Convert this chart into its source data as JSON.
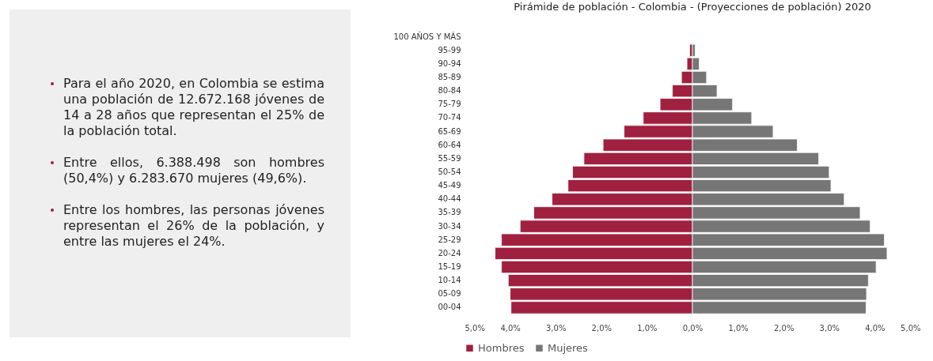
{
  "chart_data": {
    "type": "bar",
    "orientation": "horizontal",
    "stacked": true,
    "title": "Pirámide de población - Colombia - (Proyecciones de población) 2020",
    "categories": [
      "100 AÑOS Y MÁS",
      "95-99",
      "90-94",
      "85-89",
      "80-84",
      "75-79",
      "70-74",
      "65-69",
      "60-64",
      "55-59",
      "50-54",
      "45-49",
      "40-44",
      "35-39",
      "30-34",
      "25-29",
      "20-24",
      "15-19",
      "10-14",
      "05-09",
      "00-04"
    ],
    "series": [
      {
        "name": "Hombres",
        "color": "#a0203f",
        "values": [
          null,
          -0.06,
          -0.12,
          -0.24,
          -0.44,
          -0.71,
          -1.08,
          -1.5,
          -1.96,
          -2.38,
          -2.63,
          -2.73,
          -3.08,
          -3.48,
          -3.78,
          -4.19,
          -4.33,
          -4.19,
          -4.04,
          -4.0,
          -3.98
        ]
      },
      {
        "name": "Mujeres",
        "color": "#767676",
        "values": [
          null,
          0.06,
          0.15,
          0.31,
          0.54,
          0.88,
          1.3,
          1.77,
          2.3,
          2.77,
          3.0,
          3.04,
          3.33,
          3.68,
          3.9,
          4.21,
          4.27,
          4.03,
          3.86,
          3.82,
          3.81
        ]
      }
    ],
    "xlim": [
      -5,
      5
    ],
    "xticks": [
      {
        "value": -5,
        "label": "5,0%"
      },
      {
        "value": -4,
        "label": "4,0%"
      },
      {
        "value": -3,
        "label": "3,0%"
      },
      {
        "value": -2,
        "label": "2,0%"
      },
      {
        "value": -1,
        "label": "1,0%"
      },
      {
        "value": 0,
        "label": "0,0%"
      },
      {
        "value": 1,
        "label": "1,0%"
      },
      {
        "value": 2,
        "label": "2,0%"
      },
      {
        "value": 3,
        "label": "3,0%"
      },
      {
        "value": 4,
        "label": "4,0%"
      },
      {
        "value": 5,
        "label": "5,0%"
      }
    ],
    "legend": "bottom",
    "annotations": [
      "Para el año 2020, en Colombia se estima una población de 12.672.168 jóvenes de 14 a 28 años que representan el 25% de la población total.",
      "Entre ellos, 6.388.498 son hombres (50,4%) y 6.283.670 mujeres (49,6%).",
      "Entre los hombres, las personas jóvenes representan el 26% de la población, y entre las mujeres el 24%."
    ]
  }
}
